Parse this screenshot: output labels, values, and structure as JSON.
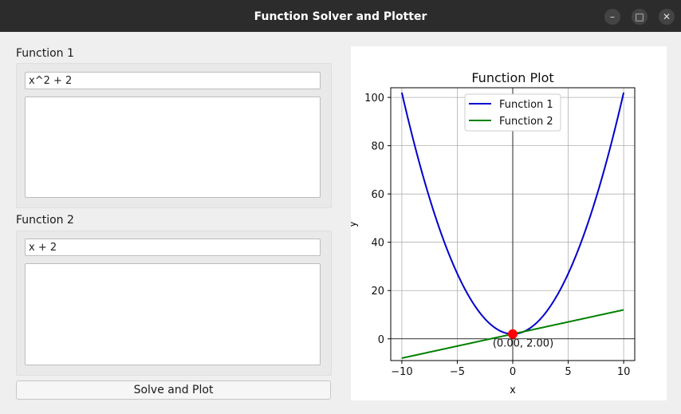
{
  "window": {
    "title": "Function Solver and Plotter"
  },
  "window_controls": {
    "minimize": "–",
    "maximize": "□",
    "close": "✕"
  },
  "function1": {
    "label": "Function 1",
    "value": "x^2 + 2",
    "output": ""
  },
  "function2": {
    "label": "Function 2",
    "value": "x + 2",
    "output": ""
  },
  "solve_button": {
    "label": "Solve and Plot"
  },
  "chart_data": {
    "type": "line",
    "title": "Function Plot",
    "xlabel": "x",
    "ylabel": "y",
    "xlim": [
      -11,
      11
    ],
    "ylim": [
      -9,
      104
    ],
    "xticks": [
      -10,
      -5,
      0,
      5,
      10
    ],
    "yticks": [
      0,
      20,
      40,
      60,
      80,
      100
    ],
    "grid": true,
    "legend_position": "top-center",
    "series": [
      {
        "name": "Function 1",
        "expression": "x^2 + 2",
        "color": "#0000cc",
        "x_range": [
          -10,
          10
        ]
      },
      {
        "name": "Function 2",
        "expression": "x + 2",
        "color": "#008000",
        "x_range": [
          -10,
          10
        ]
      }
    ],
    "intersection": {
      "x": 0.0,
      "y": 2.0,
      "label": "(0.00, 2.00)",
      "color": "#ff0000"
    }
  }
}
